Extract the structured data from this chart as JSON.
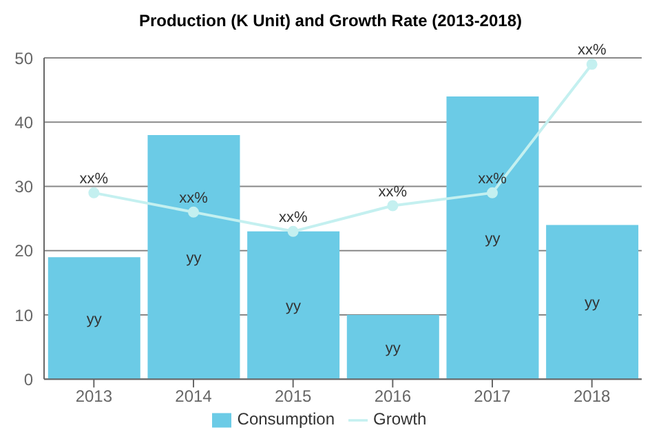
{
  "chart_data": {
    "type": "bar",
    "title": "Production (K Unit) and Growth Rate (2013-2018)",
    "categories": [
      "2013",
      "2014",
      "2015",
      "2016",
      "2017",
      "2018"
    ],
    "series": [
      {
        "name": "Consumption",
        "color": "#6bcbe6",
        "values": [
          19,
          38,
          23,
          10,
          44,
          24
        ],
        "value_labels": [
          "yy",
          "yy",
          "yy",
          "yy",
          "yy",
          "yy"
        ]
      },
      {
        "name": "Growth",
        "type": "line",
        "color": "#c4f0f0",
        "values": [
          29,
          26,
          23,
          27,
          29,
          49
        ],
        "value_labels": [
          "xx%",
          "xx%",
          "xx%",
          "xx%",
          "xx%",
          "xx%"
        ]
      }
    ],
    "ylim": [
      0,
      50
    ],
    "yticks": [
      0,
      10,
      20,
      30,
      40,
      50
    ],
    "grid": "y",
    "legend": "bottom",
    "marker": "circle"
  }
}
